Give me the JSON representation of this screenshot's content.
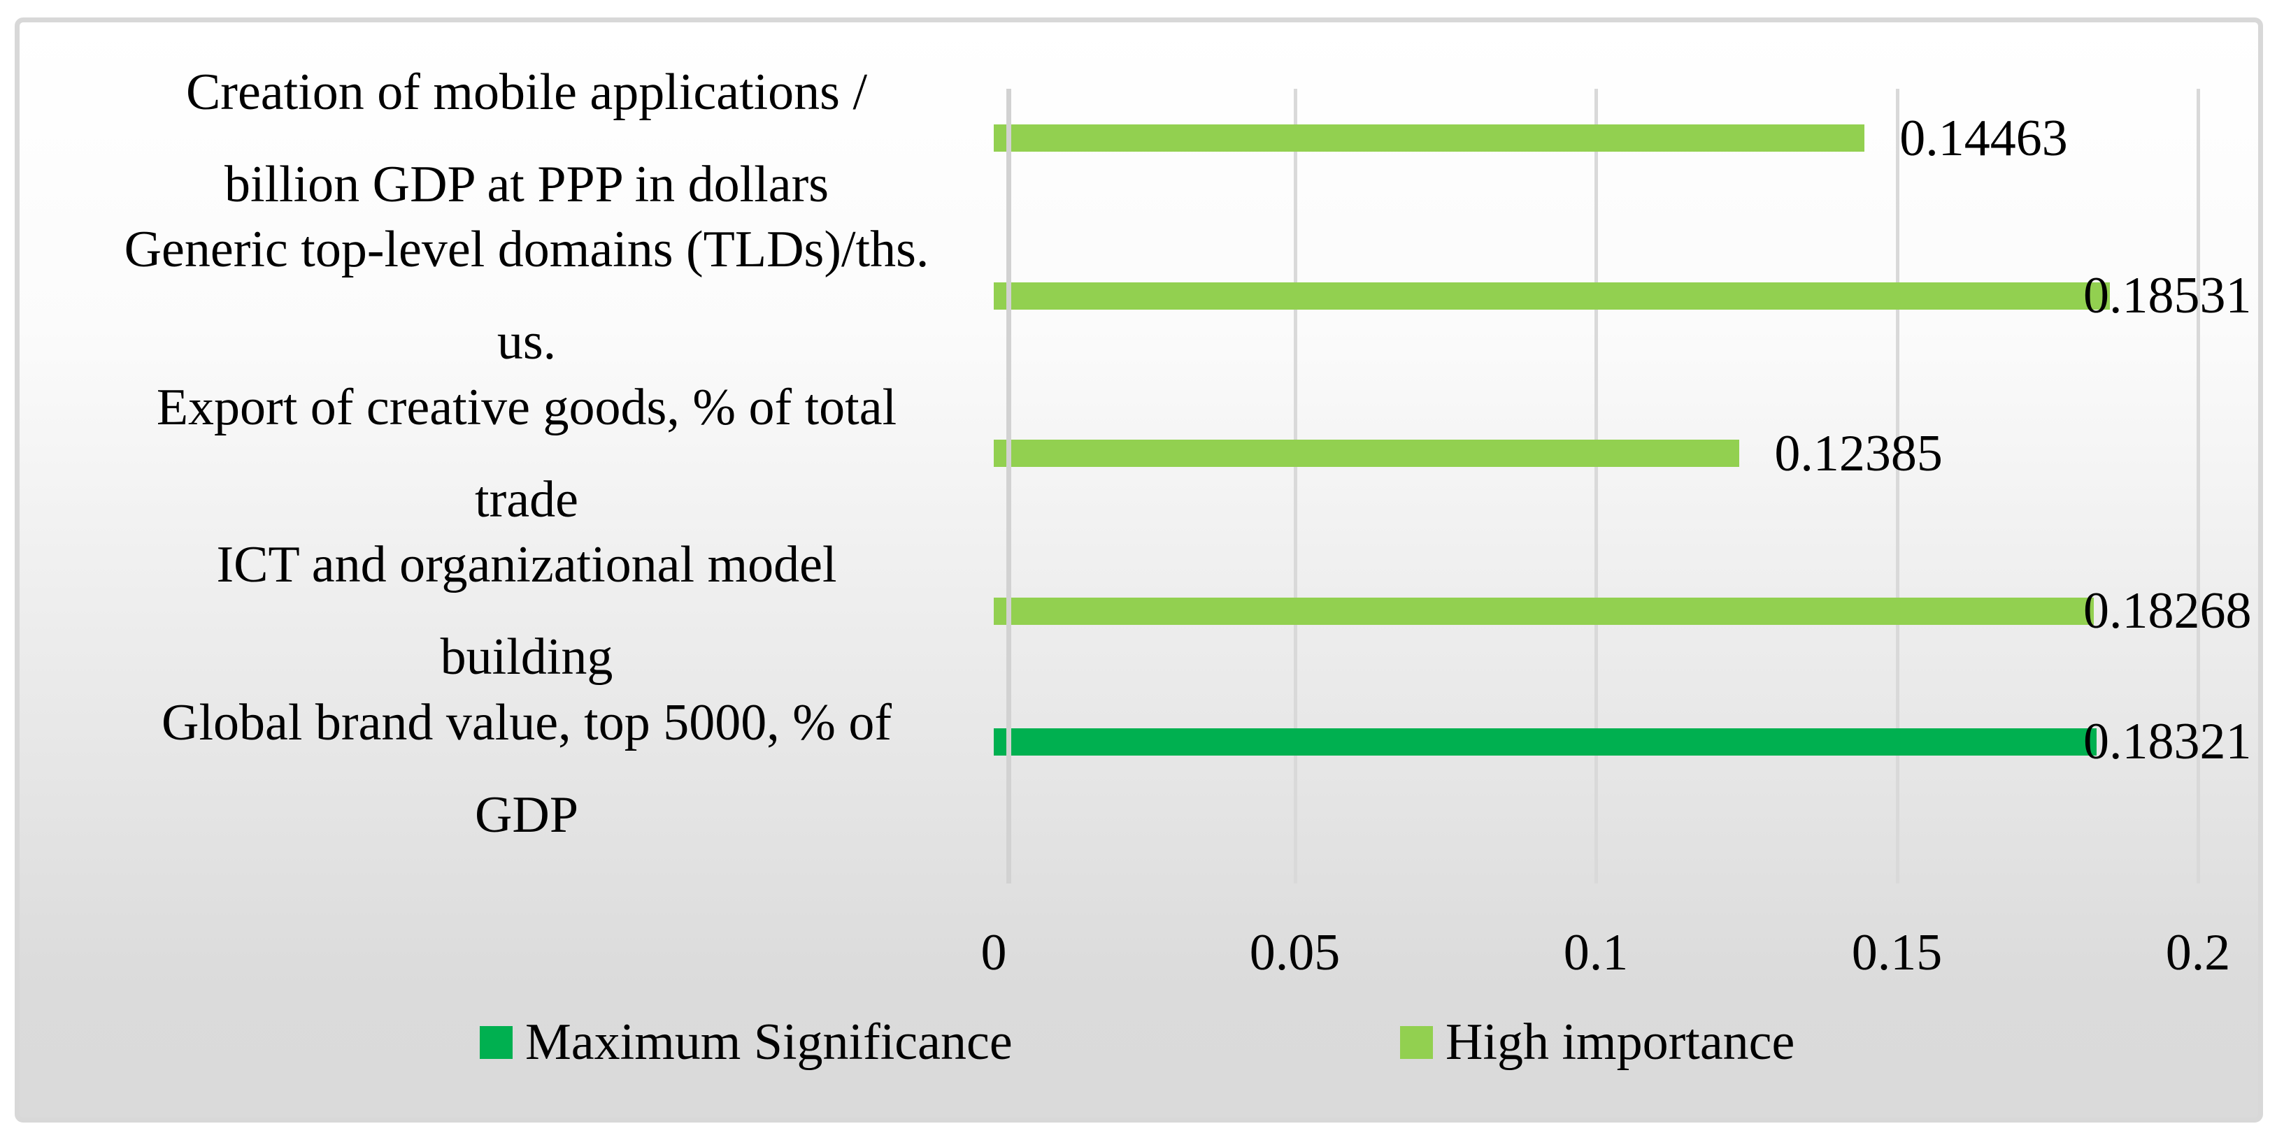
{
  "chart_data": {
    "type": "bar",
    "orientation": "horizontal",
    "title": "",
    "xlabel": "",
    "ylabel": "",
    "xlim": [
      0,
      0.2
    ],
    "xticks": [
      {
        "label": "0",
        "value": 0
      },
      {
        "label": "0.05",
        "value": 0.05
      },
      {
        "label": "0.1",
        "value": 0.1
      },
      {
        "label": "0.15",
        "value": 0.15
      },
      {
        "label": "0.2",
        "value": 0.2
      }
    ],
    "grid": "vertical-only",
    "legend_position": "bottom",
    "categories": [
      {
        "label": "Creation of mobile applications / billion GDP at PPP in dollars",
        "lines": [
          "Creation of mobile applications /",
          "billion GDP at PPP in dollars"
        ],
        "series": "High importance",
        "value": 0.14463,
        "data_label": "0.14463"
      },
      {
        "label": "Generic top-level domains (TLDs)/ths. us.",
        "lines": [
          "Generic top-level domains (TLDs)/ths.",
          "us."
        ],
        "series": "High importance",
        "value": 0.18531,
        "data_label": "0.18531"
      },
      {
        "label": "Export of creative goods, % of total trade",
        "lines": [
          "Export of creative goods, % of total",
          "trade"
        ],
        "series": "High importance",
        "value": 0.12385,
        "data_label": "0.12385"
      },
      {
        "label": "ICT and organizational model building",
        "lines": [
          "ICT and organizational model",
          "building"
        ],
        "series": "High importance",
        "value": 0.18268,
        "data_label": "0.18268"
      },
      {
        "label": "Global brand value, top 5000, % of GDP",
        "lines": [
          "Global brand value, top 5000, % of",
          "GDP"
        ],
        "series": "Maximum Significance",
        "value": 0.18321,
        "data_label": "0.18321"
      }
    ],
    "series": [
      {
        "name": "Maximum Significance",
        "color": "#00B050"
      },
      {
        "name": "High importance",
        "color": "#92D050"
      }
    ]
  },
  "legend": {
    "items": [
      {
        "label": "Maximum Significance",
        "color": "#00B050"
      },
      {
        "label": "High importance",
        "color": "#92D050"
      }
    ]
  },
  "colors": {
    "gridline": "#D9D9D9",
    "axis_line": "#D2D2D2",
    "chart_border": "#D8D8D8",
    "background_top": "#FFFFFF",
    "background_bottom": "#DADADA",
    "text": "#000000"
  }
}
